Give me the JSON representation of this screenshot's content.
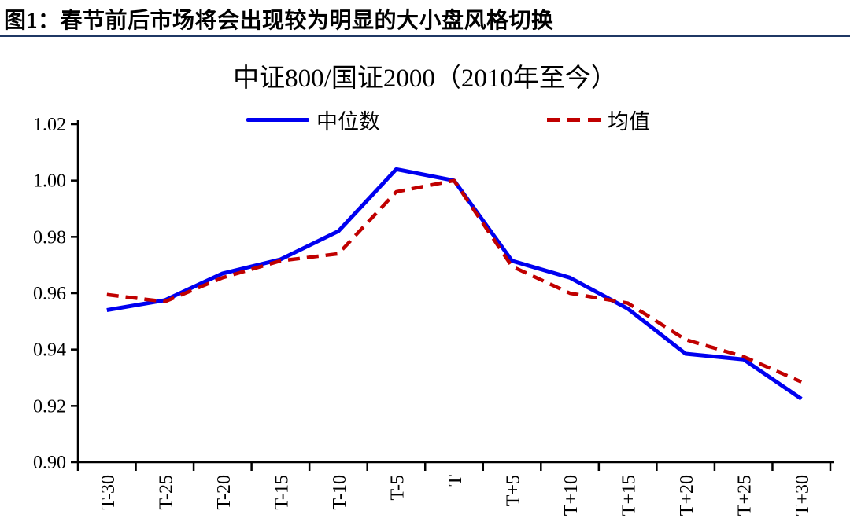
{
  "header": {
    "title": "图1：春节前后市场将会出现较为明显的大小盘风格切换"
  },
  "chart": {
    "title": "中证800/国证2000（2010年至今）",
    "legend": [
      {
        "label": "中位数"
      },
      {
        "label": "均值"
      }
    ]
  },
  "colors": {
    "divider": "#1F3864",
    "axis": "#000000",
    "median_line": "#0000F0",
    "mean_line": "#C00000"
  },
  "chart_data": {
    "type": "line",
    "title": "中证800/国证2000（2010年至今）",
    "categories": [
      "T-30",
      "T-25",
      "T-20",
      "T-15",
      "T-10",
      "T-5",
      "T",
      "T+5",
      "T+10",
      "T+15",
      "T+20",
      "T+25",
      "T+30"
    ],
    "series": [
      {
        "name": "中位数",
        "color": "#0000F0",
        "style": "solid",
        "values": [
          0.954,
          0.9575,
          0.967,
          0.972,
          0.982,
          1.004,
          1.0,
          0.9715,
          0.9655,
          0.9545,
          0.9385,
          0.9365,
          0.9225
        ]
      },
      {
        "name": "均值",
        "color": "#C00000",
        "style": "dashed",
        "values": [
          0.9595,
          0.957,
          0.9655,
          0.9715,
          0.974,
          0.996,
          1.0,
          0.9695,
          0.96,
          0.9565,
          0.9435,
          0.9375,
          0.9285
        ]
      }
    ],
    "ylim": [
      0.9,
      1.02
    ],
    "yticks": [
      "0.90",
      "0.92",
      "0.94",
      "0.96",
      "0.98",
      "1.00",
      "1.02"
    ],
    "xlabel": "",
    "ylabel": "",
    "grid": false,
    "legend_position": "top-inside"
  }
}
